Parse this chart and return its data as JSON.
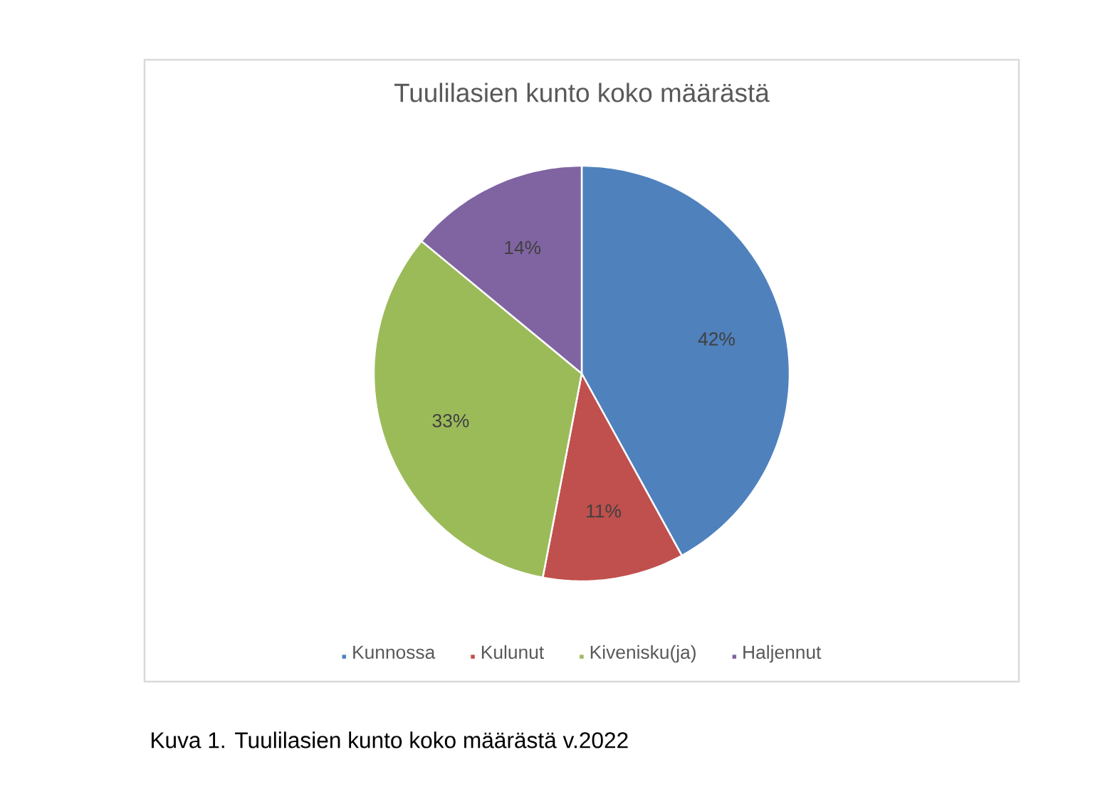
{
  "chart_data": {
    "type": "pie",
    "title": "Tuulilasien kunto koko määrästä",
    "categories": [
      "Kunnossa",
      "Kulunut",
      "Kivenisku(ja)",
      "Haljennut"
    ],
    "values": [
      42,
      11,
      33,
      14
    ],
    "colors": [
      "#4f81bd",
      "#c0504d",
      "#9bbb59",
      "#8064a2"
    ],
    "value_labels": [
      "42%",
      "11%",
      "33%",
      "14%"
    ],
    "legend": "bottom",
    "annotations": [
      "Kuva 1. Tuulilasien kunto koko määrästä v.2022"
    ]
  }
}
